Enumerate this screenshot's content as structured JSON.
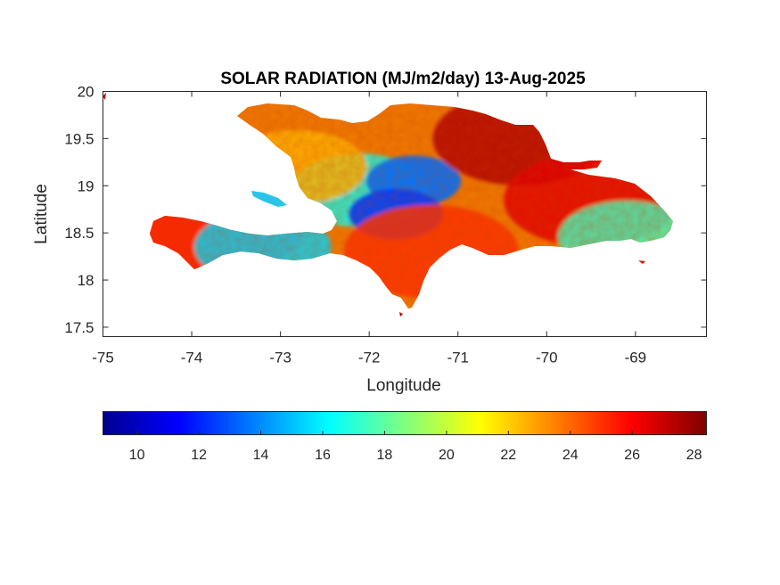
{
  "chart_data": {
    "type": "heatmap",
    "title": "SOLAR RADIATION (MJ/m2/day) 13-Aug-2025",
    "xlabel": "Longitude",
    "ylabel": "Latitude",
    "xlim": [
      -75,
      -68.2
    ],
    "ylim": [
      17.4,
      20
    ],
    "x_ticks": [
      "-75",
      "-74",
      "-73",
      "-72",
      "-71",
      "-70",
      "-69"
    ],
    "y_ticks": [
      "17.5",
      "18",
      "18.5",
      "19",
      "19.5",
      "20"
    ],
    "colormap": "jet",
    "colorbar": {
      "range": [
        8.9,
        28.4
      ],
      "ticks": [
        "10",
        "12",
        "14",
        "16",
        "18",
        "20",
        "22",
        "24",
        "26",
        "28"
      ],
      "position": "bottom"
    },
    "grid": false,
    "regions": [
      {
        "name": "",
        "lon": -72.1,
        "lat": 18.95,
        "value": 16.5
      },
      {
        "name": "",
        "lon": -71.5,
        "lat": 19.05,
        "value": 13.5
      },
      {
        "name": "",
        "lon": -71.7,
        "lat": 18.7,
        "value": 12.5
      },
      {
        "name": "",
        "lon": -72.8,
        "lat": 19.2,
        "value": 22.5
      },
      {
        "name": "",
        "lon": -70.3,
        "lat": 19.5,
        "value": 27.5
      },
      {
        "name": "",
        "lon": -69.5,
        "lat": 18.85,
        "value": 26.5
      },
      {
        "name": "",
        "lon": -73.7,
        "lat": 18.55,
        "value": 25.5
      },
      {
        "name": "",
        "lon": -73.2,
        "lat": 18.35,
        "value": 15.5
      },
      {
        "name": "",
        "lon": -71.3,
        "lat": 18.3,
        "value": 25.0
      },
      {
        "name": "",
        "lon": -69.1,
        "lat": 18.45,
        "value": 17.5
      }
    ]
  }
}
